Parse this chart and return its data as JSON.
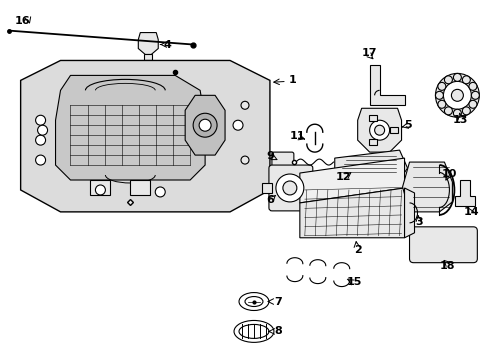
{
  "background_color": "#ffffff",
  "line_color": "#000000",
  "part_fill": "#e8e8e8",
  "housing_fill": "#d8d8d8",
  "fig_width": 4.89,
  "fig_height": 3.6,
  "dpi": 100
}
